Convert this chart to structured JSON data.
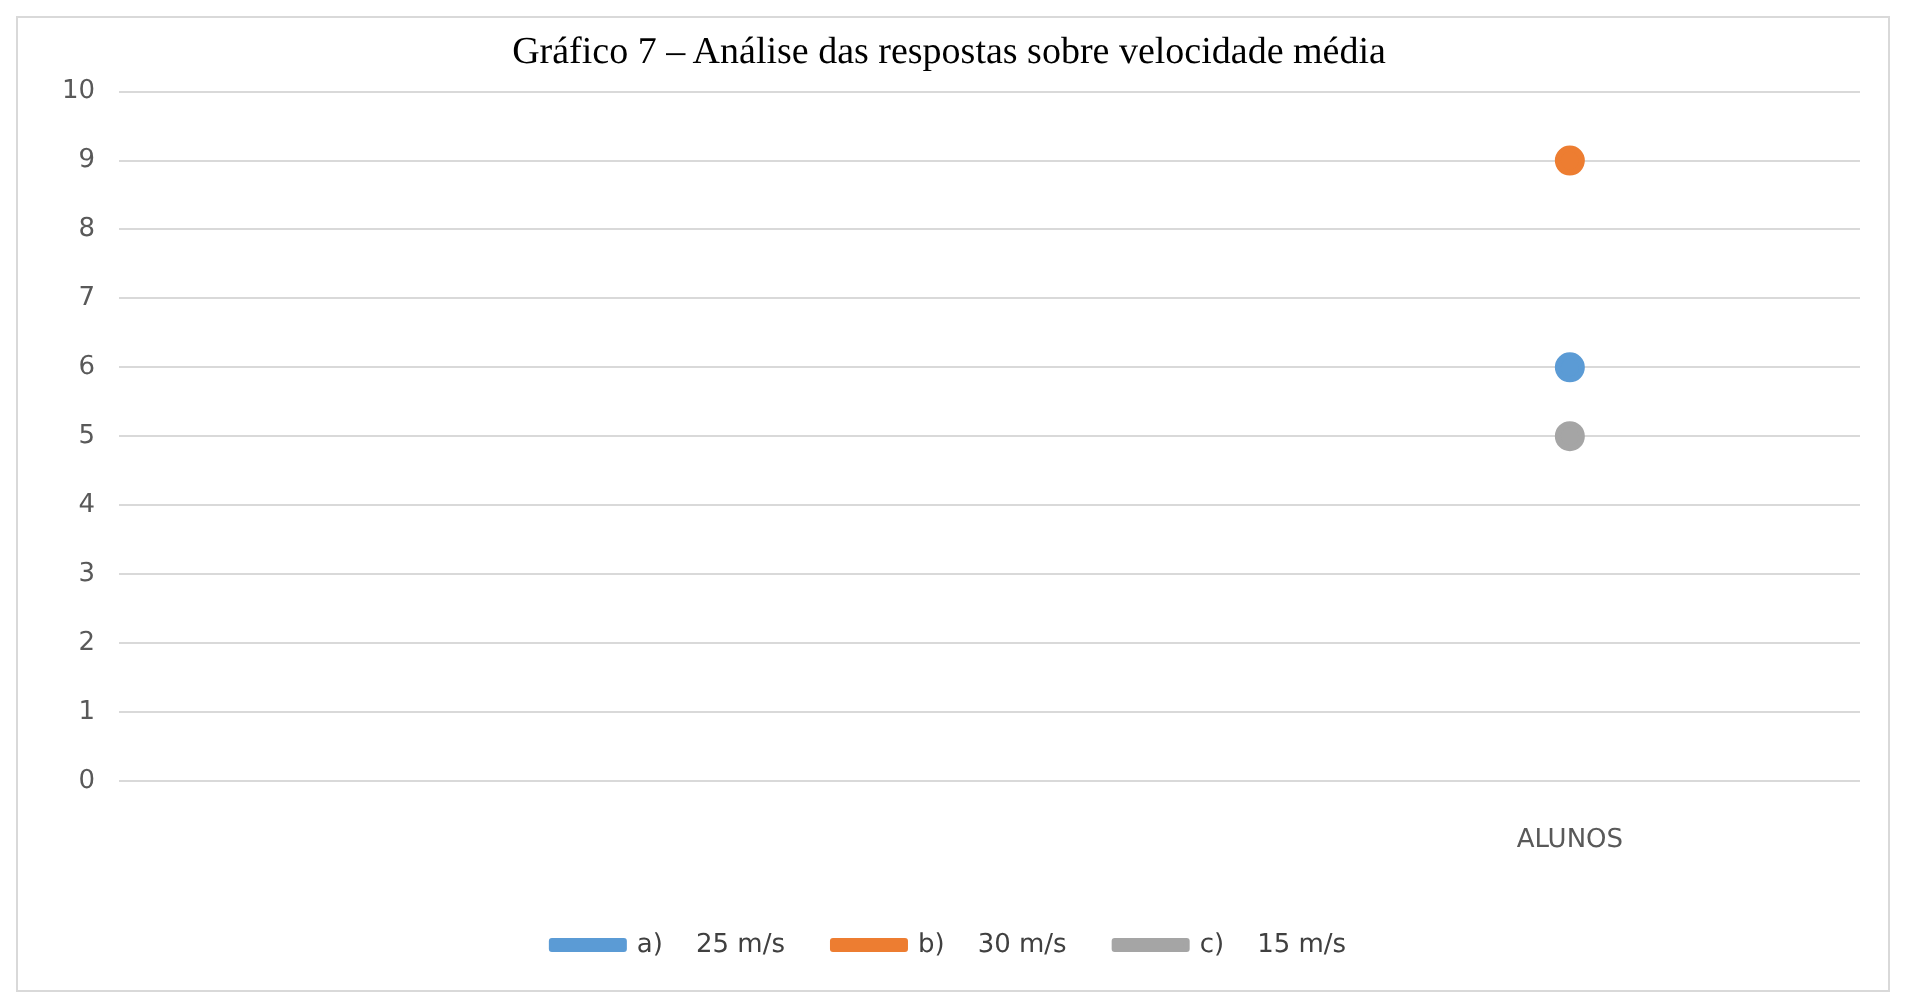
{
  "chart_data": {
    "type": "line",
    "title": "Gráfico 7 – Análise das respostas sobre velocidade média",
    "categories": [
      null,
      null,
      "ALUNOS"
    ],
    "series": [
      {
        "name": "a)    25 m/s",
        "color": "#5b9bd5",
        "values": [
          null,
          null,
          6
        ]
      },
      {
        "name": "b)    30 m/s",
        "color": "#ed7d31",
        "values": [
          null,
          null,
          9
        ]
      },
      {
        "name": "c)    15 m/s",
        "color": "#a5a5a5",
        "values": [
          null,
          null,
          5
        ]
      }
    ],
    "ylim": [
      0,
      10
    ],
    "yticks": [
      0,
      1,
      2,
      3,
      4,
      5,
      6,
      7,
      8,
      9,
      10
    ],
    "grid": "y",
    "legend": "bottom",
    "marker": "circle"
  }
}
